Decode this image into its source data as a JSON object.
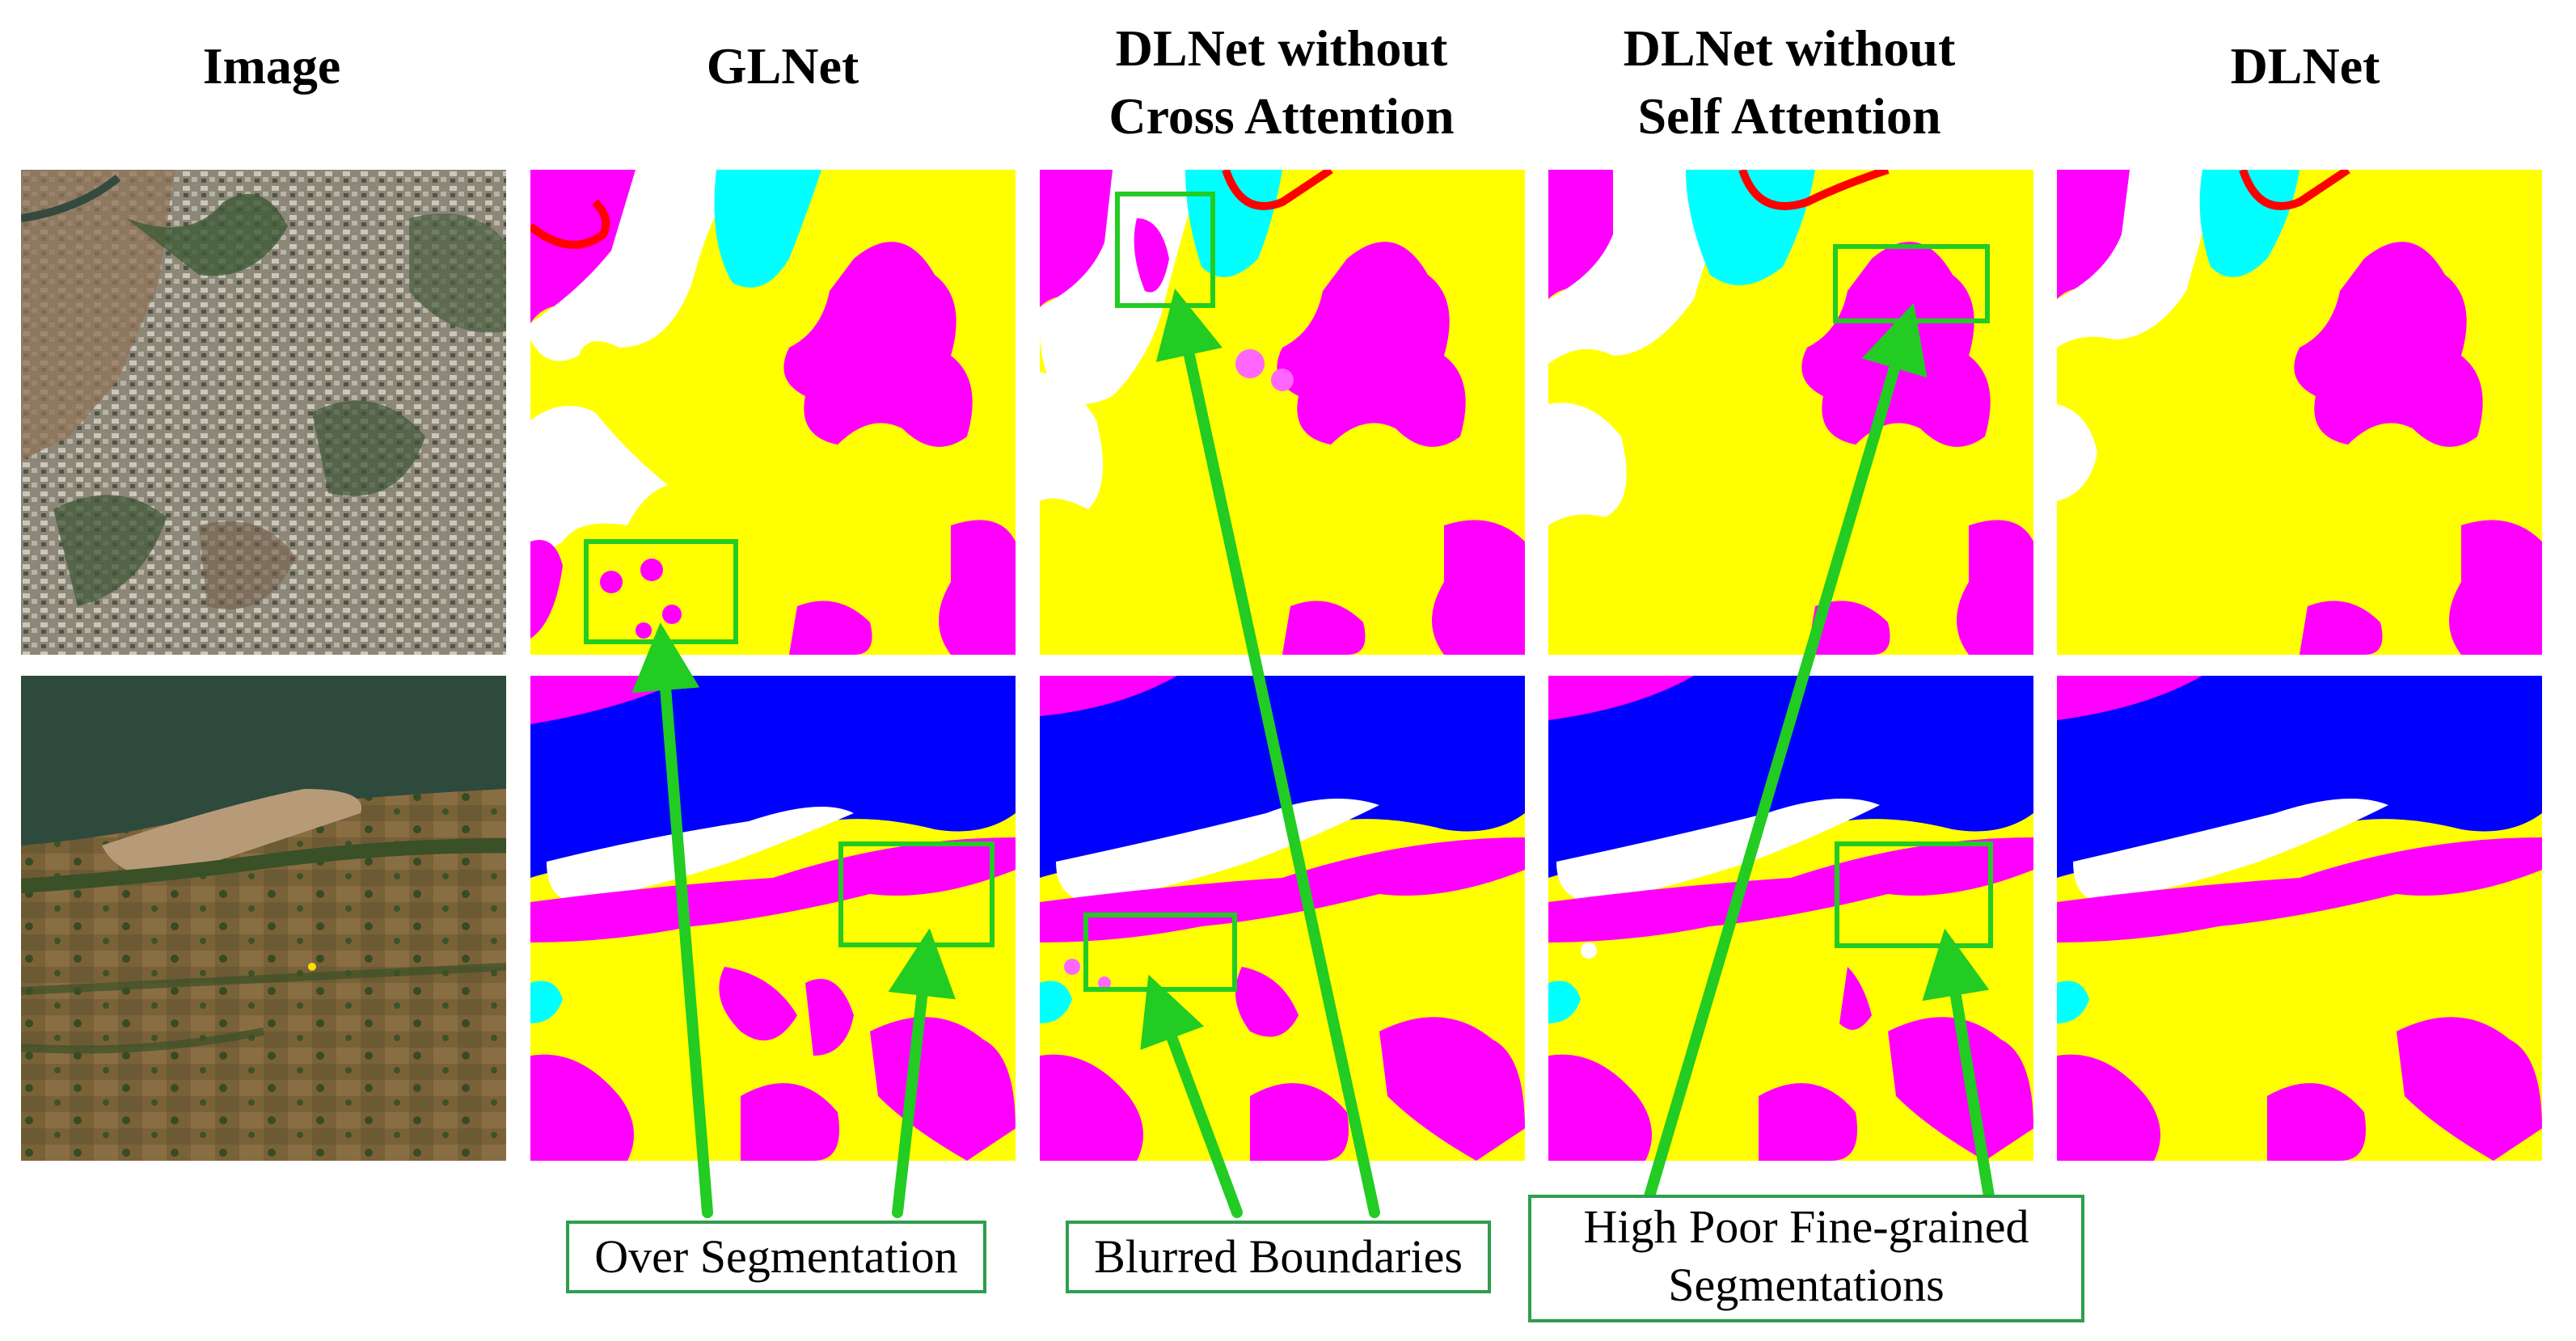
{
  "headers": {
    "image": "Image",
    "glnet": "GLNet",
    "no_cross": [
      "DLNet without",
      "Cross Attention"
    ],
    "no_self": [
      "DLNet without",
      "Self Attention"
    ],
    "dlnet": "DLNet"
  },
  "callouts": {
    "over_segmentation": "Over Segmentation",
    "blurred_boundaries": "Blurred Boundaries",
    "fine_grained": [
      "High Poor Fine-grained",
      "Segmentations"
    ]
  },
  "colors": {
    "urban": "#ffff00",
    "agriculture": "#ff00ff",
    "water": "#0000ff",
    "barren": "#ffffff",
    "rangeland": "#00ffff",
    "road": "#ff0000",
    "callout_green": "#22cc22"
  }
}
